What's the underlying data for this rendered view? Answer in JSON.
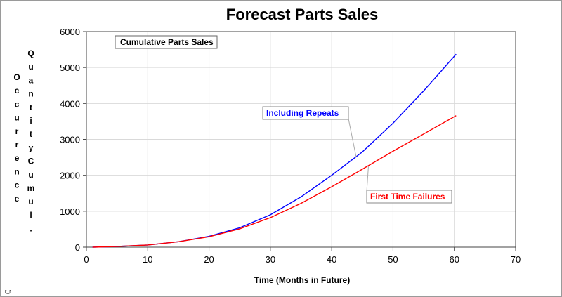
{
  "chart_data": {
    "type": "line",
    "title": "Forecast Parts Sales",
    "xlabel": "Time (Months in Future)",
    "ylabel_lines": [
      "Occurrence",
      "Quantity Cumul."
    ],
    "xlim": [
      0,
      70
    ],
    "ylim": [
      0,
      6000
    ],
    "xticks": [
      0,
      10,
      20,
      30,
      40,
      50,
      60,
      70
    ],
    "yticks": [
      0,
      1000,
      2000,
      3000,
      4000,
      5000,
      6000
    ],
    "grid": true,
    "annotation": "Cumulative Parts Sales",
    "series": [
      {
        "name": "Including Repeats",
        "color": "#0000ff",
        "x": [
          1,
          5,
          10,
          15,
          20,
          25,
          30,
          35,
          40,
          45,
          50,
          55,
          60.3
        ],
        "y": [
          0,
          20,
          60,
          150,
          300,
          540,
          900,
          1400,
          2000,
          2650,
          3450,
          4350,
          5370
        ]
      },
      {
        "name": "First Time Failures",
        "color": "#ff0000",
        "x": [
          1,
          5,
          10,
          15,
          20,
          25,
          30,
          35,
          40,
          45,
          50,
          55,
          60.3
        ],
        "y": [
          0,
          20,
          60,
          150,
          290,
          510,
          820,
          1220,
          1680,
          2170,
          2670,
          3150,
          3660
        ]
      }
    ],
    "footnote": "r_r"
  }
}
